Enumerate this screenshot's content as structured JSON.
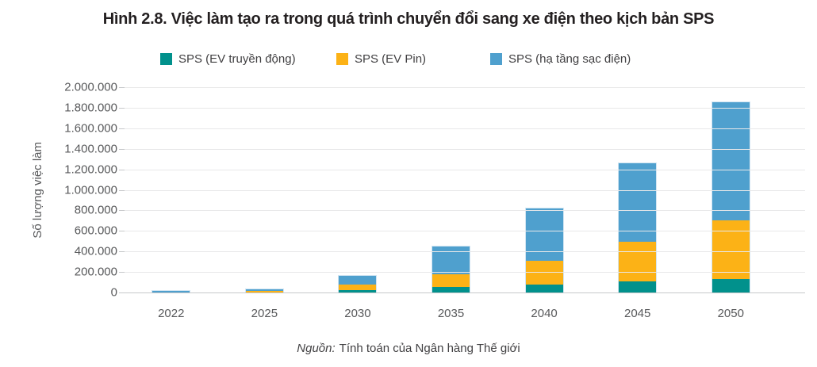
{
  "title": "Hình 2.8. Việc làm tạo ra trong quá trình chuyển đổi sang xe điện theo kịch bản SPS",
  "source": {
    "prefix": "Nguồn:",
    "text": "Tính toán của Ngân hàng Thế giới"
  },
  "colors": {
    "teal": "#01918C",
    "orange": "#FCB216",
    "blue": "#4FA0CE",
    "gridline": "#e8e8e9",
    "axis_text": "#58595b"
  },
  "chart_data": {
    "type": "bar",
    "stacked": true,
    "title": "Hình 2.8. Việc làm tạo ra trong quá trình chuyển đổi sang xe điện theo kịch bản SPS",
    "categories": [
      "2022",
      "2025",
      "2030",
      "2035",
      "2040",
      "2045",
      "2050"
    ],
    "series": [
      {
        "name": "SPS (EV truyền động)",
        "color": "#01918C",
        "values": [
          1000,
          2000,
          25000,
          55000,
          80000,
          105000,
          130000
        ]
      },
      {
        "name": "SPS (EV Pin)",
        "color": "#FCB216",
        "values": [
          2000,
          12000,
          50000,
          125000,
          230000,
          390000,
          575000
        ]
      },
      {
        "name": "SPS (hạ tầng sạc điện)",
        "color": "#4FA0CE",
        "values": [
          12000,
          13000,
          85000,
          270000,
          510000,
          765000,
          1145000
        ]
      }
    ],
    "totals_approx": [
      15000,
      27000,
      160000,
      450000,
      820000,
      1260000,
      1850000
    ],
    "xlabel": "",
    "ylabel": "Số lượng việc làm",
    "ylim": [
      0,
      2000000
    ],
    "ytick_step": 200000,
    "ytick_labels": [
      "0",
      "200.000",
      "400.000",
      "600.000",
      "800.000",
      "1.000.000",
      "1.200.000",
      "1.400.000",
      "1.600.000",
      "1.800.000",
      "2.000.000"
    ],
    "grid": true,
    "legend_position": "top"
  }
}
